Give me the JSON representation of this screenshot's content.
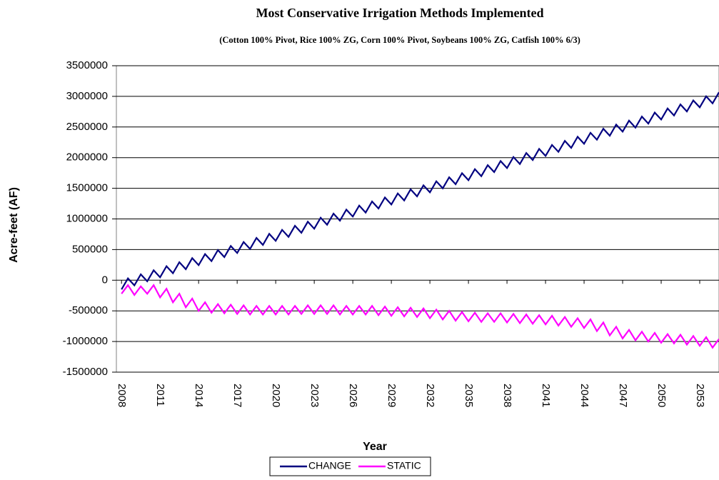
{
  "chart_data": {
    "type": "line",
    "title": "Most Conservative Irrigation Methods Implemented",
    "subtitle": "(Cotton 100% Pivot, Rice 100% ZG, Corn 100% Pivot, Soybeans 100% ZG, Catfish 100% 6/3)",
    "x_label": "Year",
    "y_label": "Acre-feet (AF)",
    "x": [
      2008,
      2008.5,
      2009,
      2009.5,
      2010,
      2010.5,
      2011,
      2011.5,
      2012,
      2012.5,
      2013,
      2013.5,
      2014,
      2014.5,
      2015,
      2015.5,
      2016,
      2016.5,
      2017,
      2017.5,
      2018,
      2018.5,
      2019,
      2019.5,
      2020,
      2020.5,
      2021,
      2021.5,
      2022,
      2022.5,
      2023,
      2023.5,
      2024,
      2024.5,
      2025,
      2025.5,
      2026,
      2026.5,
      2027,
      2027.5,
      2028,
      2028.5,
      2029,
      2029.5,
      2030,
      2030.5,
      2031,
      2031.5,
      2032,
      2032.5,
      2033,
      2033.5,
      2034,
      2034.5,
      2035,
      2035.5,
      2036,
      2036.5,
      2037,
      2037.5,
      2038,
      2038.5,
      2039,
      2039.5,
      2040,
      2040.5,
      2041,
      2041.5,
      2042,
      2042.5,
      2043,
      2043.5,
      2044,
      2044.5,
      2045,
      2045.5,
      2046,
      2046.5,
      2047,
      2047.5,
      2048,
      2048.5,
      2049,
      2049.5,
      2050,
      2050.5,
      2051,
      2051.5,
      2052,
      2052.5,
      2053,
      2053.5,
      2054,
      2054.5
    ],
    "series": [
      {
        "name": "CHANGE",
        "color": "#000080",
        "values": [
          -150000,
          30000,
          -84000,
          96000,
          -18000,
          162000,
          48000,
          228000,
          114000,
          294000,
          180000,
          360000,
          246000,
          426000,
          312000,
          492000,
          378000,
          558000,
          444000,
          624000,
          510000,
          690000,
          576000,
          756000,
          642000,
          822000,
          708000,
          888000,
          774000,
          954000,
          840000,
          1020000,
          906000,
          1086000,
          972000,
          1152000,
          1038000,
          1218000,
          1104000,
          1284000,
          1170000,
          1350000,
          1236000,
          1416000,
          1302000,
          1482000,
          1368000,
          1548000,
          1434000,
          1614000,
          1500000,
          1680000,
          1566000,
          1746000,
          1632000,
          1812000,
          1698000,
          1878000,
          1764000,
          1944000,
          1830000,
          2010000,
          1896000,
          2076000,
          1962000,
          2142000,
          2028000,
          2208000,
          2094000,
          2274000,
          2160000,
          2340000,
          2226000,
          2406000,
          2292000,
          2472000,
          2358000,
          2538000,
          2424000,
          2604000,
          2490000,
          2670000,
          2556000,
          2736000,
          2622000,
          2802000,
          2688000,
          2868000,
          2754000,
          2934000,
          2820000,
          3000000,
          2886000,
          3066000
        ]
      },
      {
        "name": "STATIC",
        "color": "#ff00ff",
        "values": [
          -220000,
          -80000,
          -240000,
          -100000,
          -220000,
          -80000,
          -280000,
          -140000,
          -360000,
          -220000,
          -440000,
          -300000,
          -500000,
          -360000,
          -530000,
          -390000,
          -540000,
          -400000,
          -550000,
          -410000,
          -560000,
          -420000,
          -560000,
          -420000,
          -560000,
          -420000,
          -560000,
          -420000,
          -550000,
          -410000,
          -550000,
          -410000,
          -550000,
          -410000,
          -560000,
          -420000,
          -560000,
          -420000,
          -560000,
          -420000,
          -570000,
          -430000,
          -580000,
          -440000,
          -590000,
          -450000,
          -600000,
          -460000,
          -620000,
          -480000,
          -640000,
          -500000,
          -660000,
          -520000,
          -670000,
          -530000,
          -680000,
          -540000,
          -680000,
          -540000,
          -690000,
          -550000,
          -700000,
          -560000,
          -710000,
          -570000,
          -720000,
          -580000,
          -740000,
          -600000,
          -760000,
          -620000,
          -780000,
          -640000,
          -830000,
          -690000,
          -900000,
          -760000,
          -950000,
          -810000,
          -980000,
          -840000,
          -1000000,
          -860000,
          -1020000,
          -880000,
          -1030000,
          -890000,
          -1050000,
          -910000,
          -1070000,
          -930000,
          -1100000,
          -960000
        ]
      }
    ],
    "xlim": [
      2007.6,
      2054.5
    ],
    "xticks": [
      2008,
      2011,
      2014,
      2017,
      2020,
      2023,
      2026,
      2029,
      2032,
      2035,
      2038,
      2041,
      2044,
      2047,
      2050,
      2053
    ],
    "ylim": [
      -1500000,
      3500000
    ],
    "yticks": [
      -1500000,
      -1000000,
      -500000,
      0,
      500000,
      1000000,
      1500000,
      2000000,
      2500000,
      3000000,
      3500000
    ],
    "grid": true,
    "legend": "bottom"
  }
}
